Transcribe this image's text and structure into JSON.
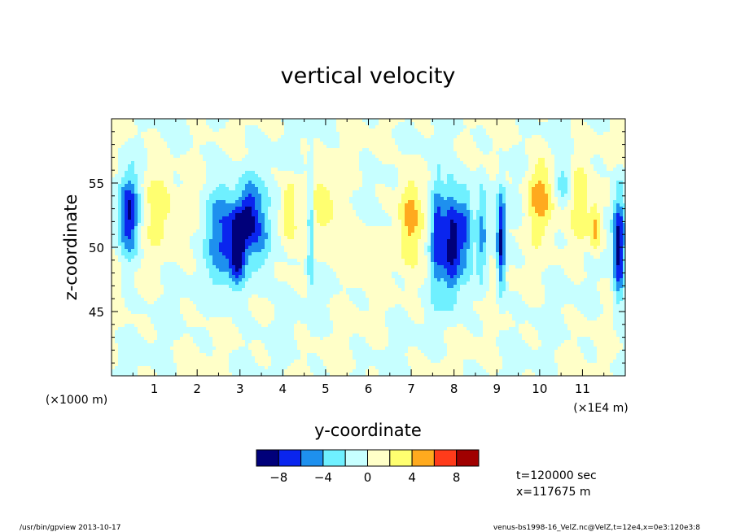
{
  "chart_data": {
    "type": "heatmap",
    "title": "vertical velocity",
    "xlabel": "y-coordinate",
    "ylabel": "z-coordinate",
    "x_scale_label": "(×1E4 m)",
    "y_scale_label": "(×1000 m)",
    "xlim": [
      0,
      12
    ],
    "ylim": [
      40,
      60
    ],
    "x_ticks": [
      "1",
      "2",
      "3",
      "4",
      "5",
      "6",
      "7",
      "8",
      "9",
      "10",
      "11"
    ],
    "y_ticks": [
      "45",
      "50",
      "55"
    ],
    "grid": false,
    "colorbar": {
      "levels": [
        "−8",
        "−4",
        "0",
        "4",
        "8"
      ],
      "colors": [
        "#00007a",
        "#0a25ee",
        "#1e90ee",
        "#6ff0ff",
        "#c7ffff",
        "#ffffc8",
        "#ffff70",
        "#ffaa1e",
        "#ff3b1a",
        "#a00000"
      ]
    },
    "annotations": [
      "t=120000 sec",
      "x=117675 m"
    ],
    "features": [
      {
        "y": 0.4,
        "z": 52.5,
        "sy": 0.16,
        "sz": 2.2,
        "v": -8
      },
      {
        "y": 1.1,
        "z": 53.5,
        "sy": 0.25,
        "sz": 2.2,
        "v": 3
      },
      {
        "y": 2.6,
        "z": 51,
        "sy": 0.25,
        "sz": 3,
        "v": -6
      },
      {
        "y": 2.95,
        "z": 50,
        "sy": 0.13,
        "sz": 2,
        "v": -9
      },
      {
        "y": 3.2,
        "z": 52.5,
        "sy": 0.15,
        "sz": 1.8,
        "v": -6
      },
      {
        "y": 3.5,
        "z": 51,
        "sy": 0.2,
        "sz": 2.5,
        "v": -5
      },
      {
        "y": 4.15,
        "z": 53,
        "sy": 0.12,
        "sz": 1.8,
        "v": 4
      },
      {
        "y": 4.65,
        "z": 51.5,
        "sy": 0.05,
        "sz": 3.5,
        "v": -5
      },
      {
        "y": 4.95,
        "z": 53,
        "sy": 0.2,
        "sz": 2.5,
        "v": 3
      },
      {
        "y": 5.7,
        "z": 50,
        "sy": 0.3,
        "sz": 1.5,
        "v": 2
      },
      {
        "y": 6.95,
        "z": 52.5,
        "sy": 0.18,
        "sz": 2.5,
        "v": 5
      },
      {
        "y": 7.6,
        "z": 51,
        "sy": 0.12,
        "sz": 3,
        "v": -7
      },
      {
        "y": 7.95,
        "z": 50.5,
        "sy": 0.14,
        "sz": 3,
        "v": -9
      },
      {
        "y": 8.25,
        "z": 51.5,
        "sy": 0.12,
        "sz": 2.5,
        "v": -6
      },
      {
        "y": 8.65,
        "z": 51,
        "sy": 0.08,
        "sz": 2.5,
        "v": -4
      },
      {
        "y": 9.1,
        "z": 50.5,
        "sy": 0.07,
        "sz": 2.8,
        "v": -9
      },
      {
        "y": 10.0,
        "z": 54,
        "sy": 0.22,
        "sz": 2,
        "v": 5
      },
      {
        "y": 10.55,
        "z": 55,
        "sy": 0.12,
        "sz": 1.3,
        "v": -3
      },
      {
        "y": 10.95,
        "z": 53,
        "sy": 0.15,
        "sz": 2.5,
        "v": 3
      },
      {
        "y": 11.3,
        "z": 51.5,
        "sy": 0.1,
        "sz": 1.5,
        "v": 5
      },
      {
        "y": 11.85,
        "z": 50,
        "sy": 0.1,
        "sz": 3,
        "v": -9
      }
    ]
  },
  "footer": {
    "left": "/usr/bin/gpview  2013-10-17",
    "right": "venus-bs1998-16_VelZ.nc@VelZ,t=12e4,x=0e3:120e3:8"
  }
}
